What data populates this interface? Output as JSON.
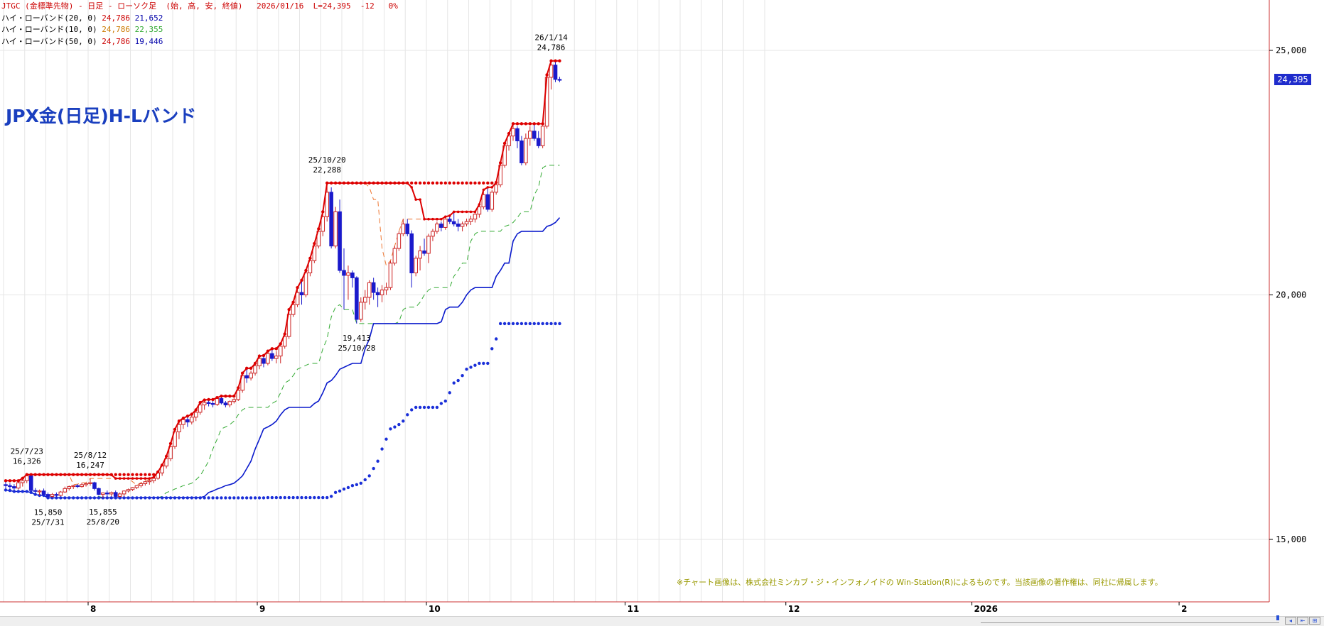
{
  "header": {
    "title_line": "JTGC (金標準先物) - 日足 - ローソク足  (始, 高, 安, 終値)   2026/01/16  L=24,395  -12   0%",
    "bands": [
      {
        "label": "ハイ・ローバンド(20, 0)",
        "high": "24,786",
        "low": "21,652"
      },
      {
        "label": "ハイ・ローバンド(10, 0)",
        "high": "24,786",
        "low": "22,355"
      },
      {
        "label": "ハイ・ローバンド(50, 0)",
        "high": "24,786",
        "low": "19,446"
      }
    ]
  },
  "overlay_title": "JPX金(日足)H-Lバンド",
  "copyright": "※チャート画像は、株式会社ミンカブ・ジ・インフォノイドの Win-Station(R)によるものです。当該画像の著作権は、同社に帰属します。",
  "last_price_label": "24,395",
  "colors": {
    "bull_candle": "#cc2222",
    "bear_candle": "#1a1acc",
    "band20_high": "#dd0000",
    "band20_low": "#0a1acc",
    "band10": "#ee7733",
    "band10_low": "#33aa33",
    "band50_high": "#dd0000",
    "band50_low": "#1a2fd8",
    "grid": "#e6e6e6",
    "border": "#cc3333"
  },
  "nav_icons": [
    "scroll-left-icon",
    "zoom-out-icon",
    "zoom-in-icon"
  ],
  "chart_data": {
    "type": "candlestick",
    "title": "JTGC (金標準先物) - 日足 - ローソク足",
    "y_axis": {
      "ticks": [
        15000,
        20000,
        25000
      ],
      "tick_labels": [
        "15,000",
        "20,000",
        "25,000"
      ],
      "range": [
        13800,
        26100
      ]
    },
    "x_axis": {
      "tick_labels": [
        "8",
        "9",
        "10",
        "11",
        "12",
        "2026",
        "2"
      ],
      "tick_bar_index": [
        20,
        60,
        100,
        147,
        185,
        229,
        278
      ]
    },
    "grid": true,
    "series": [
      {
        "name": "ローソク足",
        "ohlc": [
          [
            16120,
            16200,
            16010,
            16100
          ],
          [
            16100,
            16150,
            16000,
            16080
          ],
          [
            16080,
            16130,
            15980,
            16050
          ],
          [
            16050,
            16200,
            16020,
            16160
          ],
          [
            16160,
            16250,
            16080,
            16200
          ],
          [
            16200,
            16326,
            16150,
            16300
          ],
          [
            16300,
            16320,
            15960,
            16000
          ],
          [
            16000,
            16050,
            15920,
            15990
          ],
          [
            15990,
            16020,
            15900,
            15990
          ],
          [
            15990,
            16040,
            15900,
            15920
          ],
          [
            15920,
            15960,
            15850,
            15880
          ],
          [
            15880,
            15950,
            15850,
            15920
          ],
          [
            15920,
            15960,
            15850,
            15900
          ],
          [
            15900,
            15990,
            15880,
            15970
          ],
          [
            15970,
            16080,
            15950,
            16040
          ],
          [
            16040,
            16100,
            16000,
            16080
          ],
          [
            16080,
            16120,
            16030,
            16100
          ],
          [
            16100,
            16130,
            16050,
            16080
          ],
          [
            16080,
            16160,
            16060,
            16120
          ],
          [
            16120,
            16160,
            16080,
            16140
          ],
          [
            16140,
            16247,
            16100,
            16160
          ],
          [
            16160,
            16180,
            16000,
            16040
          ],
          [
            16040,
            16060,
            15900,
            15920
          ],
          [
            15920,
            15960,
            15855,
            15950
          ],
          [
            15950,
            16000,
            15880,
            15930
          ],
          [
            15930,
            15980,
            15880,
            15960
          ],
          [
            15960,
            16000,
            15860,
            15880
          ],
          [
            15880,
            15960,
            15855,
            15930
          ],
          [
            15930,
            16000,
            15880,
            15990
          ],
          [
            15990,
            16040,
            15960,
            16020
          ],
          [
            16020,
            16070,
            15990,
            16060
          ],
          [
            16060,
            16110,
            16030,
            16100
          ],
          [
            16100,
            16160,
            16060,
            16140
          ],
          [
            16140,
            16200,
            16100,
            16180
          ],
          [
            16180,
            16230,
            16120,
            16200
          ],
          [
            16200,
            16270,
            16150,
            16250
          ],
          [
            16250,
            16380,
            16220,
            16360
          ],
          [
            16360,
            16520,
            16300,
            16500
          ],
          [
            16500,
            16700,
            16450,
            16650
          ],
          [
            16650,
            16960,
            16600,
            16900
          ],
          [
            16900,
            17250,
            16850,
            17200
          ],
          [
            17200,
            17420,
            17050,
            17350
          ],
          [
            17350,
            17480,
            17260,
            17450
          ],
          [
            17450,
            17520,
            17300,
            17400
          ],
          [
            17400,
            17560,
            17350,
            17500
          ],
          [
            17500,
            17650,
            17420,
            17600
          ],
          [
            17600,
            17800,
            17550,
            17750
          ],
          [
            17750,
            17850,
            17650,
            17800
          ],
          [
            17800,
            17860,
            17720,
            17780
          ],
          [
            17780,
            17830,
            17700,
            17760
          ],
          [
            17760,
            17900,
            17730,
            17880
          ],
          [
            17880,
            17930,
            17760,
            17790
          ],
          [
            17790,
            17830,
            17700,
            17750
          ],
          [
            17750,
            17840,
            17700,
            17820
          ],
          [
            17820,
            17890,
            17780,
            17860
          ],
          [
            17860,
            18100,
            17830,
            18050
          ],
          [
            18050,
            18400,
            18000,
            18350
          ],
          [
            18350,
            18500,
            18200,
            18300
          ],
          [
            18300,
            18450,
            18250,
            18400
          ],
          [
            18400,
            18600,
            18350,
            18550
          ],
          [
            18550,
            18750,
            18480,
            18700
          ],
          [
            18700,
            18760,
            18520,
            18600
          ],
          [
            18600,
            18850,
            18560,
            18800
          ],
          [
            18800,
            18900,
            18650,
            18700
          ],
          [
            18700,
            18850,
            18600,
            18750
          ],
          [
            18750,
            19000,
            18600,
            18950
          ],
          [
            18950,
            19200,
            18900,
            19150
          ],
          [
            19150,
            19700,
            19100,
            19600
          ],
          [
            19600,
            19850,
            19550,
            19800
          ],
          [
            19800,
            20150,
            19750,
            20050
          ],
          [
            20050,
            20300,
            19800,
            20000
          ],
          [
            20000,
            20500,
            19950,
            20450
          ],
          [
            20450,
            20750,
            20380,
            20700
          ],
          [
            20700,
            21050,
            20650,
            21000
          ],
          [
            21000,
            21350,
            20950,
            21300
          ],
          [
            21300,
            21700,
            21200,
            21600
          ],
          [
            21600,
            22288,
            21500,
            22100
          ],
          [
            22100,
            22200,
            20950,
            21000
          ],
          [
            21000,
            21800,
            20950,
            21700
          ],
          [
            21700,
            21950,
            20450,
            20500
          ],
          [
            20500,
            20950,
            19700,
            20400
          ],
          [
            20400,
            20600,
            19900,
            20450
          ],
          [
            20450,
            20500,
            20150,
            20350
          ],
          [
            20350,
            20380,
            19413,
            19500
          ],
          [
            19500,
            19950,
            19450,
            19850
          ],
          [
            19850,
            20100,
            19700,
            19950
          ],
          [
            19950,
            20300,
            19800,
            20250
          ],
          [
            20250,
            20350,
            19900,
            20050
          ],
          [
            20050,
            20150,
            19750,
            20000
          ],
          [
            20000,
            20200,
            19850,
            20100
          ],
          [
            20100,
            20250,
            20000,
            20150
          ],
          [
            20150,
            20700,
            20100,
            20650
          ],
          [
            20650,
            21000,
            20600,
            20950
          ],
          [
            20950,
            21300,
            20900,
            21250
          ],
          [
            21250,
            21550,
            21200,
            21450
          ],
          [
            21450,
            21550,
            21200,
            21250
          ],
          [
            21250,
            21320,
            20150,
            20450
          ],
          [
            20450,
            20800,
            20380,
            20750
          ],
          [
            20750,
            21000,
            20500,
            20900
          ],
          [
            20900,
            21150,
            20800,
            20850
          ],
          [
            20850,
            21250,
            20650,
            21200
          ],
          [
            21200,
            21350,
            21100,
            21300
          ],
          [
            21300,
            21500,
            21250,
            21450
          ],
          [
            21450,
            21500,
            21300,
            21380
          ],
          [
            21380,
            21600,
            21330,
            21550
          ],
          [
            21550,
            21620,
            21450,
            21500
          ],
          [
            21500,
            21700,
            21400,
            21450
          ],
          [
            21450,
            21550,
            21300,
            21400
          ],
          [
            21400,
            21500,
            21300,
            21450
          ],
          [
            21450,
            21560,
            21400,
            21500
          ],
          [
            21500,
            21620,
            21430,
            21550
          ],
          [
            21550,
            21700,
            21480,
            21650
          ],
          [
            21650,
            21850,
            21580,
            21800
          ],
          [
            21800,
            22150,
            21750,
            22050
          ],
          [
            22050,
            22200,
            21700,
            21750
          ],
          [
            21750,
            22150,
            21700,
            22100
          ],
          [
            22100,
            22300,
            22050,
            22250
          ],
          [
            22250,
            22700,
            22200,
            22650
          ],
          [
            22650,
            23100,
            22600,
            23050
          ],
          [
            23050,
            23300,
            22950,
            23250
          ],
          [
            23250,
            23500,
            23150,
            23400
          ],
          [
            23400,
            23450,
            23000,
            23150
          ],
          [
            23150,
            23250,
            22650,
            22700
          ],
          [
            22700,
            23300,
            22650,
            23200
          ],
          [
            23200,
            23450,
            23050,
            23350
          ],
          [
            23350,
            23480,
            23150,
            23200
          ],
          [
            23200,
            23350,
            23000,
            23050
          ],
          [
            23050,
            23500,
            23000,
            23450
          ],
          [
            23450,
            24500,
            23400,
            24450
          ],
          [
            24450,
            24786,
            24200,
            24700
          ],
          [
            24700,
            24786,
            24350,
            24407
          ],
          [
            24407,
            24460,
            24350,
            24395
          ]
        ]
      },
      {
        "name": "ハイ・ローバンド(20, 0)"
      },
      {
        "name": "ハイ・ローバンド(10, 0)"
      },
      {
        "name": "ハイ・ローバンド(50, 0)"
      }
    ],
    "annotations": [
      {
        "type": "high",
        "date": "25/7/23",
        "value": "16,326"
      },
      {
        "type": "low",
        "date": "25/7/31",
        "value": "15,850"
      },
      {
        "type": "high",
        "date": "25/8/12",
        "value": "16,247"
      },
      {
        "type": "low",
        "date": "25/8/20",
        "value": "15,855"
      },
      {
        "type": "high",
        "date": "25/10/20",
        "value": "22,288"
      },
      {
        "type": "low",
        "date": "25/10/28",
        "value": "19,413"
      },
      {
        "type": "high",
        "date": "26/1/14",
        "value": "24,786"
      }
    ]
  }
}
